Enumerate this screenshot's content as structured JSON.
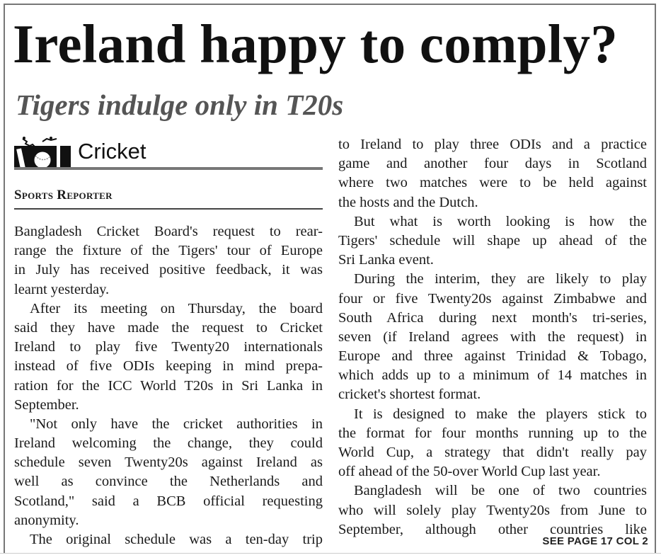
{
  "headline": "Ireland happy to comply?",
  "subheadline": "Tigers indulge only in T20s",
  "section": {
    "label": "Cricket",
    "logo_icon": "cricket-bat-ball-stumps-icon"
  },
  "byline": "Sports Reporter",
  "left_column": [
    {
      "indent": false,
      "lines": [
        "Bangladesh Cricket Board's request to rear-",
        "range the fixture of the Tigers' tour of Europe",
        "in July has received positive feedback, it was",
        "learnt yesterday."
      ]
    },
    {
      "indent": true,
      "lines": [
        "After its meeting on Thursday, the board",
        "said they have made the request to Cricket",
        "Ireland to play five Twenty20 internationals",
        "instead of five ODIs keeping in mind prepa-",
        "ration for the ICC World T20s in Sri Lanka in",
        "September."
      ]
    },
    {
      "indent": true,
      "lines": [
        "\"Not only have the cricket authorities in",
        "Ireland welcoming the change, they could",
        "schedule seven Twenty20s against Ireland as",
        "well as convince the Netherlands and",
        "Scotland,\" said a BCB official requesting",
        "anonymity."
      ]
    },
    {
      "indent": true,
      "continues": true,
      "lines": [
        "The original schedule was a ten-day trip"
      ]
    }
  ],
  "right_column": [
    {
      "indent": false,
      "lines": [
        "to Ireland to play three ODIs and a practice",
        "game and another four days in Scotland",
        "where two matches were to be held against",
        "the hosts and the Dutch."
      ]
    },
    {
      "indent": true,
      "lines": [
        "But what is worth looking is how the",
        "Tigers' schedule will shape up ahead of the",
        "Sri Lanka event."
      ]
    },
    {
      "indent": true,
      "lines": [
        "During the interim, they are likely to play",
        "four or five Twenty20s against Zimbabwe and",
        "South Africa during next month's tri-series,",
        "seven (if Ireland agrees with the request) in",
        "Europe and three against Trinidad & Tobago,",
        "which adds up to a minimum of 14 matches in",
        "cricket's shortest format."
      ]
    },
    {
      "indent": true,
      "lines": [
        "It is designed to make the players stick to",
        "the format for four months running up to the",
        "World Cup, a strategy that didn't really pay",
        "off ahead of the 50-over World Cup last year."
      ]
    },
    {
      "indent": true,
      "continues": true,
      "lines": [
        "Bangladesh will be one of two countries",
        "who will solely play Twenty20s from June to",
        "September, although other countries like"
      ]
    }
  ],
  "jump_line": "SEE PAGE 17 COL 2"
}
